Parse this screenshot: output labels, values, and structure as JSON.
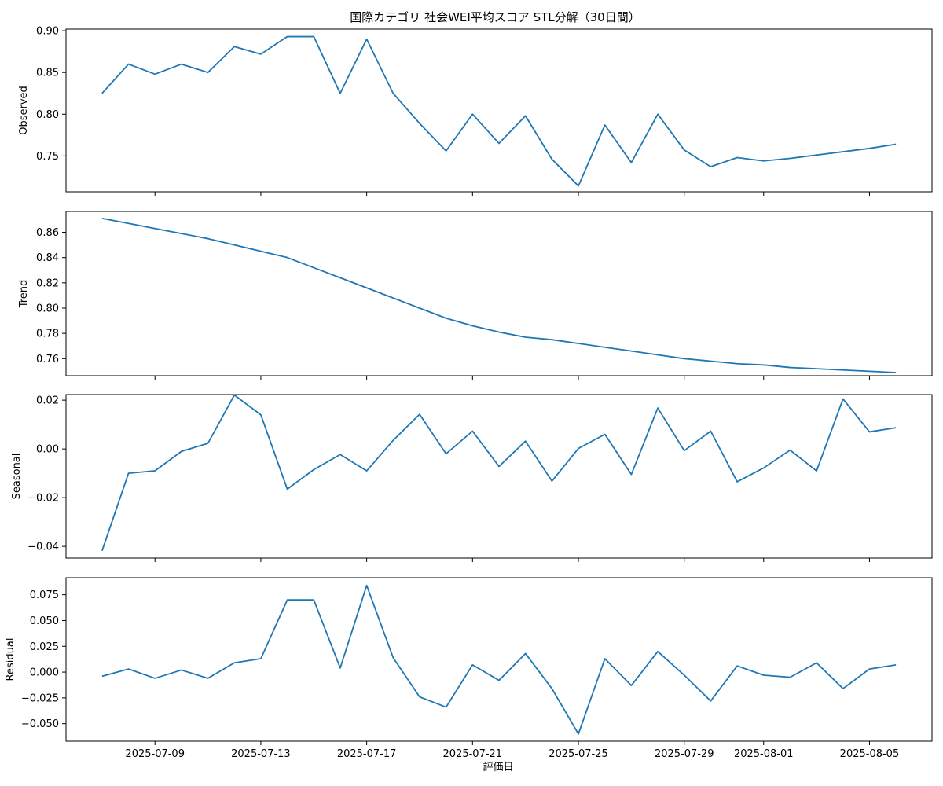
{
  "chart_data": {
    "type": "line",
    "title": "国際カテゴリ 社会WEI平均スコア STL分解（30日間）",
    "xlabel": "評価日",
    "color": "#1f77b4",
    "x": [
      "2025-07-07",
      "2025-07-08",
      "2025-07-09",
      "2025-07-10",
      "2025-07-11",
      "2025-07-12",
      "2025-07-13",
      "2025-07-14",
      "2025-07-15",
      "2025-07-16",
      "2025-07-17",
      "2025-07-18",
      "2025-07-19",
      "2025-07-20",
      "2025-07-21",
      "2025-07-22",
      "2025-07-23",
      "2025-07-24",
      "2025-07-25",
      "2025-07-26",
      "2025-07-27",
      "2025-07-28",
      "2025-07-29",
      "2025-07-30",
      "2025-07-31",
      "2025-08-01",
      "2025-08-02",
      "2025-08-03",
      "2025-08-04",
      "2025-08-05",
      "2025-08-06"
    ],
    "x_ticks": [
      "2025-07-09",
      "2025-07-13",
      "2025-07-17",
      "2025-07-21",
      "2025-07-25",
      "2025-07-29",
      "2025-08-01",
      "2025-08-05"
    ],
    "panels": [
      {
        "ylabel": "Observed",
        "ylim": [
          0.707,
          0.902
        ],
        "y_ticks": [
          "0.90",
          "0.85",
          "0.80",
          "0.75"
        ],
        "values": [
          0.825,
          0.86,
          0.848,
          0.86,
          0.85,
          0.881,
          0.872,
          0.893,
          0.893,
          0.825,
          0.89,
          0.825,
          0.789,
          0.756,
          0.8,
          0.765,
          0.798,
          0.746,
          0.714,
          0.787,
          0.742,
          0.8,
          0.757,
          0.737,
          0.748,
          0.744,
          0.747,
          0.751,
          0.755,
          0.759,
          0.764
        ]
      },
      {
        "ylabel": "Trend",
        "ylim": [
          0.7465,
          0.8765
        ],
        "y_ticks": [
          "0.86",
          "0.84",
          "0.82",
          "0.80",
          "0.78",
          "0.76"
        ],
        "values": [
          0.871,
          0.867,
          0.863,
          0.859,
          0.855,
          0.85,
          0.845,
          0.84,
          0.832,
          0.824,
          0.816,
          0.808,
          0.8,
          0.792,
          0.786,
          0.781,
          0.777,
          0.775,
          0.772,
          0.769,
          0.766,
          0.763,
          0.76,
          0.758,
          0.756,
          0.755,
          0.753,
          0.752,
          0.751,
          0.75,
          0.749
        ]
      },
      {
        "ylabel": "Seasonal",
        "ylim": [
          -0.0448,
          0.0223
        ],
        "y_ticks": [
          "0.02",
          "0.00",
          "−0.02",
          "−0.04"
        ],
        "values": [
          -0.0418,
          -0.01,
          -0.009,
          -0.001,
          0.0023,
          0.0221,
          0.014,
          -0.0165,
          -0.0085,
          -0.0023,
          -0.009,
          0.0035,
          0.0142,
          -0.002,
          0.0073,
          -0.0072,
          0.0032,
          -0.0132,
          0.0002,
          0.006,
          -0.0105,
          0.0168,
          -0.0007,
          0.0073,
          -0.0135,
          -0.0078,
          -0.0005,
          -0.009,
          0.0205,
          0.007,
          0.0087
        ]
      },
      {
        "ylabel": "Residual",
        "ylim": [
          -0.067,
          0.0915
        ],
        "y_ticks": [
          "0.075",
          "0.050",
          "0.025",
          "0.000",
          "−0.025",
          "−0.050"
        ],
        "values": [
          -0.004,
          0.003,
          -0.006,
          0.002,
          -0.006,
          0.009,
          0.013,
          0.07,
          0.07,
          0.004,
          0.084,
          0.014,
          -0.024,
          -0.034,
          0.007,
          -0.008,
          0.018,
          -0.016,
          -0.06,
          0.013,
          -0.013,
          0.02,
          -0.003,
          -0.028,
          0.006,
          -0.003,
          -0.005,
          0.009,
          -0.016,
          0.003,
          0.007
        ]
      }
    ]
  }
}
